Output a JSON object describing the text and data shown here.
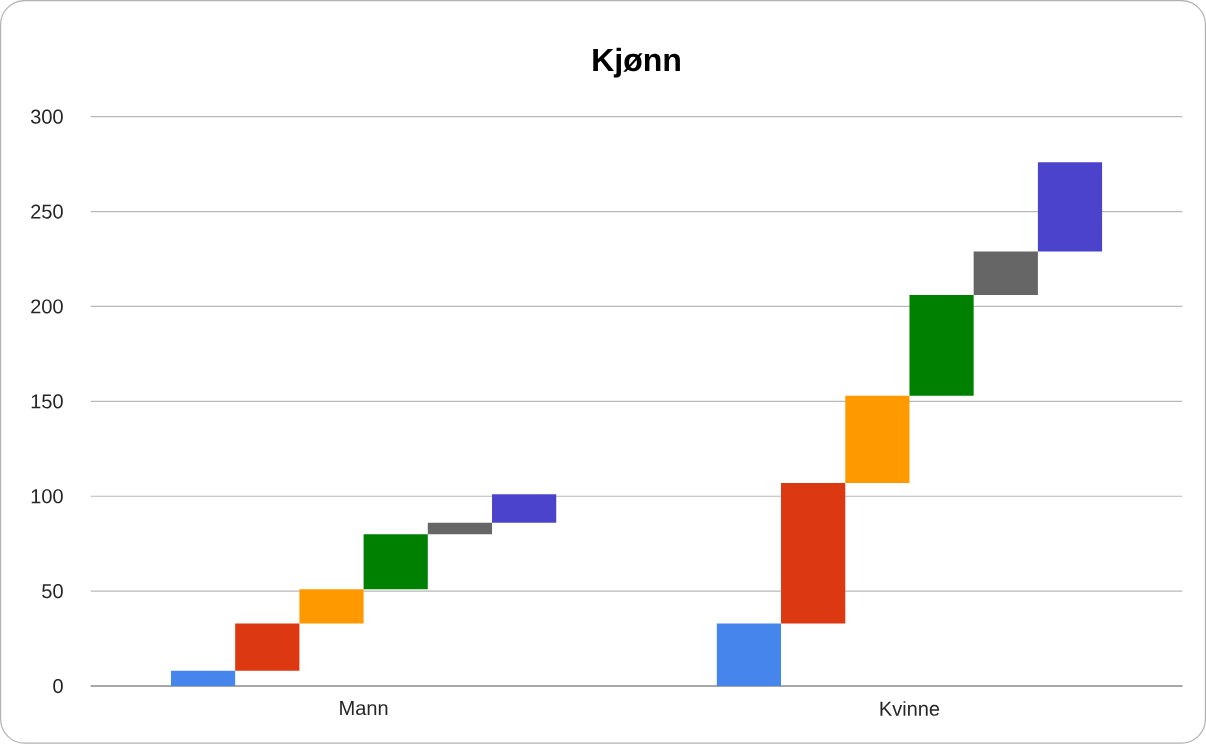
{
  "chart_data": {
    "type": "bar",
    "title": "Kjønn",
    "categories": [
      "Mann",
      "Kvinne"
    ],
    "series": [
      {
        "color": "#4686ec",
        "base": [
          0,
          0
        ],
        "values": [
          8,
          33
        ]
      },
      {
        "color": "#dc3912",
        "base": [
          8,
          33
        ],
        "values": [
          25,
          74
        ]
      },
      {
        "color": "#ff9900",
        "base": [
          33,
          107
        ],
        "values": [
          18,
          46
        ]
      },
      {
        "color": "#008000",
        "base": [
          51,
          153
        ],
        "values": [
          29,
          53
        ]
      },
      {
        "color": "#666666",
        "base": [
          80,
          206
        ],
        "values": [
          6,
          23
        ]
      },
      {
        "color": "#4b43cc",
        "base": [
          86,
          229
        ],
        "values": [
          15,
          47
        ]
      }
    ],
    "ylim": [
      0,
      300
    ],
    "yticks": [
      0,
      50,
      100,
      150,
      200,
      250,
      300
    ],
    "grid": "y"
  }
}
